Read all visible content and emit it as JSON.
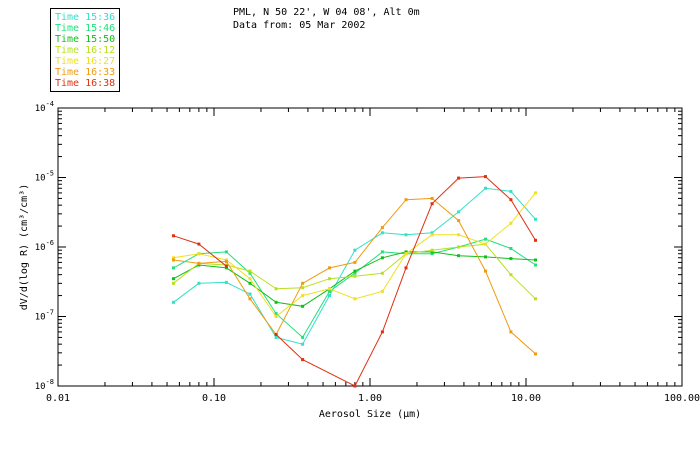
{
  "header": {
    "line1": "PML, N 50 22', W 04 08', Alt 0m",
    "line2": "Data from: 05 Mar 2002"
  },
  "chart_data": {
    "type": "line",
    "title": "",
    "xlabel": "Aerosol Size (μm)",
    "ylabel": "dV/d(log R) (cm³/cm³)",
    "xscale": "log",
    "yscale": "log",
    "xlim": [
      0.01,
      100
    ],
    "ylim": [
      1e-08,
      0.0001
    ],
    "grid": false,
    "legend_position": "top-left",
    "x_ticks": [
      {
        "value": 0.01,
        "label": "0.01"
      },
      {
        "value": 0.1,
        "label": "0.10"
      },
      {
        "value": 1,
        "label": "1.00"
      },
      {
        "value": 10,
        "label": "10.00"
      },
      {
        "value": 100,
        "label": "100.00"
      }
    ],
    "y_ticks": [
      {
        "value": 1e-08,
        "mantissa": "10",
        "exp": "-8"
      },
      {
        "value": 1e-07,
        "mantissa": "10",
        "exp": "-7"
      },
      {
        "value": 1e-06,
        "mantissa": "10",
        "exp": "-6"
      },
      {
        "value": 1e-05,
        "mantissa": "10",
        "exp": "-5"
      },
      {
        "value": 0.0001,
        "mantissa": "10",
        "exp": "-4"
      }
    ],
    "series": [
      {
        "name": "Time 15:36",
        "color": "#33e0c8",
        "x": [
          0.055,
          0.08,
          0.12,
          0.17,
          0.25,
          0.37,
          0.55,
          0.8,
          1.2,
          1.7,
          2.5,
          3.7,
          5.5,
          8,
          11.5
        ],
        "y": [
          1.6e-07,
          3e-07,
          3.1e-07,
          2.1e-07,
          5e-08,
          4e-08,
          2e-07,
          9e-07,
          1.6e-06,
          1.5e-06,
          1.6e-06,
          3.2e-06,
          7e-06,
          6.3e-06,
          2.5e-06
        ]
      },
      {
        "name": "Time 15:46",
        "color": "#22e07a",
        "x": [
          0.055,
          0.08,
          0.12,
          0.17,
          0.25,
          0.37,
          0.55,
          0.8,
          1.2,
          1.7,
          2.5,
          3.7,
          5.5,
          8,
          11.5
        ],
        "y": [
          5e-07,
          8e-07,
          8.5e-07,
          4.2e-07,
          1.1e-07,
          5e-08,
          2.3e-07,
          4.2e-07,
          8.5e-07,
          8e-07,
          8e-07,
          1e-06,
          1.3e-06,
          9.5e-07,
          5.5e-07
        ]
      },
      {
        "name": "Time 15:50",
        "color": "#10c018",
        "x": [
          0.055,
          0.08,
          0.12,
          0.17,
          0.25,
          0.37,
          0.55,
          0.8,
          1.2,
          1.7,
          2.5,
          3.7,
          5.5,
          8,
          11.5
        ],
        "y": [
          3.5e-07,
          5.5e-07,
          5e-07,
          3e-07,
          1.6e-07,
          1.4e-07,
          2.5e-07,
          4.5e-07,
          7e-07,
          8.5e-07,
          8.5e-07,
          7.5e-07,
          7.2e-07,
          6.8e-07,
          6.5e-07
        ]
      },
      {
        "name": "Time 16:12",
        "color": "#b8e020",
        "x": [
          0.055,
          0.08,
          0.12,
          0.17,
          0.25,
          0.37,
          0.55,
          0.8,
          1.2,
          1.7,
          2.5,
          3.7,
          5.5,
          8,
          11.5
        ],
        "y": [
          3e-07,
          5.8e-07,
          5.5e-07,
          4.5e-07,
          2.5e-07,
          2.6e-07,
          3.5e-07,
          3.8e-07,
          4.2e-07,
          8e-07,
          9e-07,
          1e-06,
          1.1e-06,
          4e-07,
          1.8e-07
        ]
      },
      {
        "name": "Time 16:27",
        "color": "#f0e020",
        "x": [
          0.055,
          0.08,
          0.12,
          0.17,
          0.25,
          0.37,
          0.55,
          0.8,
          1.2,
          1.7,
          2.5,
          3.7,
          5.5,
          8,
          11.5
        ],
        "y": [
          7e-07,
          8e-07,
          6.5e-07,
          3.5e-07,
          1e-07,
          2e-07,
          2.5e-07,
          1.8e-07,
          2.3e-07,
          8e-07,
          1.5e-06,
          1.5e-06,
          1.1e-06,
          2.2e-06,
          6e-06
        ]
      },
      {
        "name": "Time 16:33",
        "color": "#f09a10",
        "x": [
          0.055,
          0.08,
          0.12,
          0.17,
          0.25,
          0.37,
          0.55,
          0.8,
          1.2,
          1.7,
          2.5,
          3.7,
          5.5,
          8,
          11.5
        ],
        "y": [
          6.5e-07,
          5.8e-07,
          6.2e-07,
          1.8e-07,
          5.5e-08,
          3e-07,
          5e-07,
          6e-07,
          1.9e-06,
          4.8e-06,
          5e-06,
          2.4e-06,
          4.5e-07,
          6e-08,
          2.9e-08
        ]
      },
      {
        "name": "Time 16:38",
        "color": "#e03010",
        "x": [
          0.055,
          0.08,
          0.12,
          0.17,
          0.25,
          0.37,
          0.8,
          1.2,
          1.7,
          2.5,
          3.7,
          5.5,
          8,
          11.5
        ],
        "y": [
          1.45e-06,
          1.1e-06,
          5.3e-07,
          null,
          5.5e-08,
          2.4e-08,
          1e-08,
          6e-08,
          5e-07,
          4.2e-06,
          9.8e-06,
          1.03e-05,
          4.8e-06,
          1.25e-06
        ]
      }
    ]
  }
}
